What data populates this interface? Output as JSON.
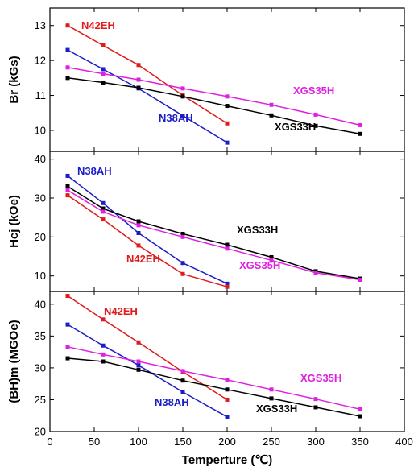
{
  "chart_data": [
    {
      "type": "line",
      "ylabel": "Br (kGs)",
      "xlabel": "",
      "xlim": [
        0,
        400
      ],
      "ylim": [
        9.4,
        13.5
      ],
      "yticks": [
        10,
        11,
        12,
        13
      ],
      "series": [
        {
          "name": "N42EH",
          "color": "#e01b1b",
          "x": [
            20,
            60,
            100,
            150,
            200
          ],
          "y": [
            13.0,
            12.43,
            11.87,
            11.0,
            10.2
          ]
        },
        {
          "name": "N38AH",
          "color": "#1c1cc8",
          "x": [
            20,
            60,
            100,
            150,
            200
          ],
          "y": [
            12.3,
            11.75,
            11.2,
            10.42,
            9.65
          ]
        },
        {
          "name": "XGS35H",
          "color": "#e020e0",
          "x": [
            20,
            60,
            100,
            150,
            200,
            250,
            300,
            350
          ],
          "y": [
            11.8,
            11.62,
            11.45,
            11.2,
            10.97,
            10.73,
            10.45,
            10.15
          ]
        },
        {
          "name": "XGS33H",
          "color": "#000000",
          "x": [
            20,
            60,
            100,
            150,
            200,
            250,
            300,
            350
          ],
          "y": [
            11.5,
            11.37,
            11.22,
            10.97,
            10.7,
            10.43,
            10.13,
            9.9
          ]
        }
      ]
    },
    {
      "type": "line",
      "ylabel": "Hcj (kOe)",
      "xlabel": "",
      "xlim": [
        0,
        400
      ],
      "ylim": [
        6,
        42
      ],
      "yticks": [
        10,
        20,
        30,
        40
      ],
      "series": [
        {
          "name": "N38AH",
          "color": "#1c1cc8",
          "x": [
            20,
            60,
            100,
            150,
            200
          ],
          "y": [
            35.7,
            28.7,
            21.0,
            13.3,
            8.0
          ]
        },
        {
          "name": "N42EH",
          "color": "#e01b1b",
          "x": [
            20,
            60,
            100,
            150,
            200
          ],
          "y": [
            30.7,
            24.5,
            17.8,
            10.5,
            7.2
          ]
        },
        {
          "name": "XGS33H",
          "color": "#000000",
          "x": [
            20,
            60,
            100,
            150,
            200,
            250,
            300,
            350
          ],
          "y": [
            33.0,
            27.3,
            24.0,
            20.8,
            18.0,
            14.8,
            11.2,
            9.3
          ]
        },
        {
          "name": "XGS35H",
          "color": "#e020e0",
          "x": [
            20,
            60,
            100,
            150,
            200,
            250,
            300,
            350
          ],
          "y": [
            32.0,
            26.5,
            23.0,
            20.0,
            17.0,
            14.0,
            10.8,
            9.0
          ]
        }
      ]
    },
    {
      "type": "line",
      "ylabel": "(BH)m (MGOe)",
      "xlabel": "Temperture (℃)",
      "xlim": [
        0,
        400
      ],
      "xticks": [
        0,
        50,
        100,
        150,
        200,
        250,
        300,
        350,
        400
      ],
      "ylim": [
        20,
        42
      ],
      "yticks": [
        20,
        25,
        30,
        35,
        40
      ],
      "series": [
        {
          "name": "N42EH",
          "color": "#e01b1b",
          "x": [
            20,
            60,
            100,
            150,
            200
          ],
          "y": [
            41.3,
            37.6,
            34.0,
            29.4,
            25.0
          ]
        },
        {
          "name": "N38AH",
          "color": "#1c1cc8",
          "x": [
            20,
            60,
            100,
            150,
            200
          ],
          "y": [
            36.8,
            33.5,
            30.4,
            26.2,
            22.3
          ]
        },
        {
          "name": "XGS35H",
          "color": "#e020e0",
          "x": [
            20,
            60,
            100,
            150,
            200,
            250,
            300,
            350
          ],
          "y": [
            33.3,
            32.1,
            31.0,
            29.5,
            28.1,
            26.6,
            25.1,
            23.5
          ]
        },
        {
          "name": "XGS33H",
          "color": "#000000",
          "x": [
            20,
            60,
            100,
            150,
            200,
            250,
            300,
            350
          ],
          "y": [
            31.5,
            31.0,
            29.7,
            28.0,
            26.6,
            25.2,
            23.8,
            22.4
          ]
        }
      ]
    }
  ]
}
